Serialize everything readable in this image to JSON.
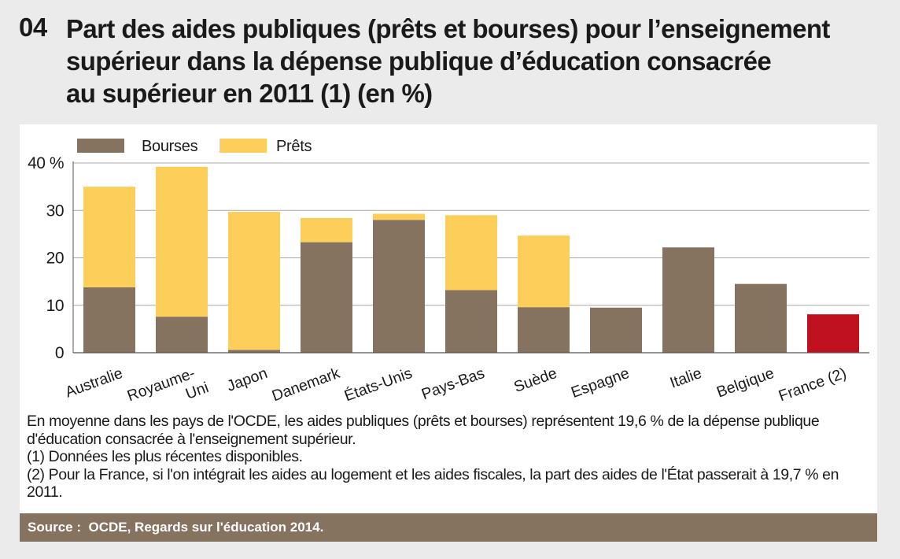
{
  "header": {
    "number": "04",
    "title_lines": [
      "Part des aides publiques (prêts et bourses) pour l’enseignement",
      "supérieur dans la dépense publique d’éducation consacrée",
      "au supérieur en 2011 (1) (en %)"
    ]
  },
  "colors": {
    "bourses": "#85725f",
    "prets": "#fdcf5a",
    "highlight": "#c0111f",
    "grid": "#a8a8a8"
  },
  "chart_data": {
    "type": "bar",
    "stacked": true,
    "title": "Part des aides publiques (prêts et bourses) pour l’enseignement supérieur dans la dépense publique d’éducation consacrée au supérieur en 2011 (1) (en %)",
    "categories": [
      [
        "Australie"
      ],
      [
        "Royaume-",
        "Uni"
      ],
      [
        "Japon"
      ],
      [
        "Danemark"
      ],
      [
        "États-Unis"
      ],
      [
        "Pays-Bas"
      ],
      [
        "Suède"
      ],
      [
        "Espagne"
      ],
      [
        "Italie"
      ],
      [
        "Belgique"
      ],
      [
        "France (2)"
      ]
    ],
    "series": [
      {
        "name": "Bourses",
        "values": [
          13.8,
          7.6,
          0.6,
          23.3,
          28.0,
          13.2,
          9.6,
          9.5,
          22.2,
          14.5,
          8.1
        ]
      },
      {
        "name": "Prêts",
        "values": [
          21.2,
          31.6,
          29.1,
          5.1,
          1.3,
          15.8,
          15.1,
          0,
          0,
          0,
          0
        ]
      }
    ],
    "highlight_index": 10,
    "highlight_label": "France (2)",
    "y_ticks": [
      "0",
      "10",
      "20",
      "30",
      "40 %"
    ],
    "y_tick_values": [
      0,
      10,
      20,
      30,
      40
    ],
    "ylim": [
      0,
      40
    ],
    "xlabel": "",
    "ylabel": "",
    "grid": true,
    "legend": {
      "placement": "top-left",
      "items": [
        "Bourses",
        "Prêts"
      ]
    }
  },
  "notes": [
    "En moyenne dans les pays de l'OCDE, les aides publiques (prêts et bourses) représentent 19,6 % de la dépense publique d'éducation consacrée à l'enseignement supérieur.",
    "(1) Données les plus récentes disponibles.",
    "(2) Pour la France, si l'on intégrait les aides au logement et les aides fiscales, la part des aides de l'État passerait à 19,7 % en 2011."
  ],
  "source": {
    "label": "Source :",
    "text": "OCDE, Regards sur l'éducation 2014."
  }
}
